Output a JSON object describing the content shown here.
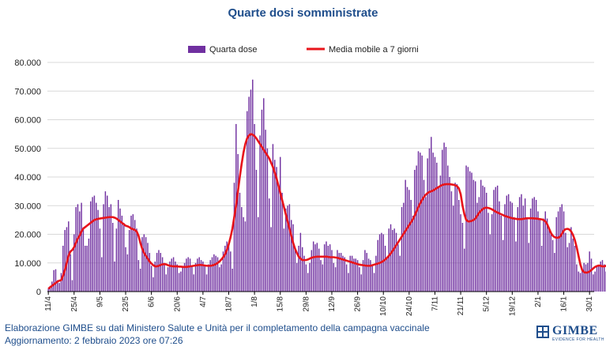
{
  "title": "Quarte dosi somministrate",
  "footer": {
    "line1": "Elaborazione GIMBE su dati Ministero Salute e Unità per il completamento della campagna vaccinale",
    "line2": "Aggiornamento: 2 febbraio 2023 ore 07:26"
  },
  "logo": {
    "name": "GIMBE",
    "tagline": "EVIDENCE FOR HEALTH"
  },
  "colors": {
    "bars": "#7030a0",
    "line": "#e8141b",
    "title": "#1f4e8c"
  },
  "chart_data": {
    "type": "bar",
    "title": "Quarte dosi somministrate",
    "ylim": [
      0,
      80000
    ],
    "y_ticks": [
      "0",
      "10.000",
      "20.000",
      "30.000",
      "40.000",
      "50.000",
      "60.000",
      "70.000",
      "80.000"
    ],
    "x_tick_labels": [
      "11/4",
      "25/4",
      "9/5",
      "23/5",
      "6/6",
      "20/6",
      "4/7",
      "18/7",
      "1/8",
      "15/8",
      "29/8",
      "12/9",
      "26/9",
      "10/10",
      "24/10",
      "7/11",
      "21/11",
      "5/12",
      "19/12",
      "2/1",
      "16/1",
      "30/1"
    ],
    "x_range": [
      "2022-04-11",
      "2023-02-01"
    ],
    "grid": "horizontal",
    "legend_position": "top",
    "series": [
      {
        "name": "Quarta dose",
        "kind": "bar",
        "start_date": "2022-04-11",
        "values": [
          1000,
          2000,
          3500,
          7500,
          7800,
          4000,
          3000,
          6500,
          16000,
          21500,
          22500,
          24500,
          13000,
          4000,
          20000,
          29500,
          30500,
          28000,
          31000,
          22500,
          16000,
          16000,
          18500,
          31500,
          33000,
          33500,
          31000,
          28500,
          22000,
          12000,
          30500,
          35000,
          33500,
          29500,
          30500,
          24000,
          10500,
          22000,
          32000,
          29000,
          26500,
          24000,
          15500,
          13000,
          21500,
          26500,
          27000,
          25000,
          22000,
          11000,
          8000,
          19000,
          20000,
          19000,
          17000,
          13500,
          9000,
          5000,
          10500,
          13500,
          14500,
          13500,
          12000,
          10000,
          6000,
          8500,
          10500,
          11500,
          12000,
          10500,
          9500,
          6500,
          7000,
          9000,
          10000,
          11500,
          12000,
          11500,
          9000,
          6000,
          10000,
          11500,
          12000,
          11000,
          10500,
          9000,
          6000,
          9500,
          11000,
          12000,
          13000,
          12500,
          12000,
          8500,
          9500,
          14000,
          16000,
          17500,
          17000,
          14000,
          8000,
          38000,
          58500,
          48000,
          34500,
          29500,
          26000,
          24500,
          63000,
          68000,
          70500,
          74000,
          58500,
          42500,
          26000,
          54500,
          63500,
          67500,
          56500,
          50000,
          32500,
          22500,
          51500,
          46000,
          43500,
          37000,
          47000,
          34500,
          22000,
          29000,
          30000,
          30500,
          25000,
          23500,
          15000,
          10000,
          16000,
          20500,
          15500,
          12500,
          9500,
          6500,
          10000,
          14500,
          17500,
          16500,
          17000,
          15000,
          11000,
          9500,
          16500,
          17500,
          16000,
          16500,
          14500,
          10000,
          8500,
          14500,
          13500,
          13500,
          12500,
          12000,
          9500,
          6500,
          12500,
          12500,
          11500,
          11500,
          11000,
          8500,
          6000,
          11000,
          14500,
          13500,
          11500,
          11000,
          9000,
          6500,
          12500,
          18000,
          20000,
          20500,
          20000,
          16000,
          11500,
          22000,
          23500,
          21500,
          22000,
          20500,
          16500,
          12500,
          29500,
          31000,
          39000,
          36500,
          35500,
          32000,
          26500,
          42500,
          44000,
          49000,
          48500,
          47500,
          39000,
          33000,
          46500,
          50000,
          54000,
          48500,
          47000,
          45000,
          36500,
          40500,
          49500,
          52000,
          50500,
          44000,
          40000,
          35000,
          30000,
          38000,
          37500,
          32000,
          27000,
          24000,
          15000,
          44000,
          43500,
          42000,
          41500,
          39000,
          38500,
          31000,
          33000,
          39000,
          37000,
          36500,
          34500,
          27500,
          20000,
          27000,
          35500,
          36500,
          37000,
          31500,
          26500,
          18000,
          30500,
          33500,
          34000,
          31500,
          31000,
          26000,
          17500,
          29500,
          33000,
          34000,
          30000,
          32500,
          25500,
          17000,
          29000,
          32500,
          33000,
          32000,
          28000,
          25000,
          16000,
          25500,
          28000,
          25500,
          22500,
          20000,
          18000,
          13500,
          26000,
          28000,
          29500,
          30500,
          28000,
          20500,
          15500,
          17000,
          22500,
          18500,
          16000,
          9500,
          7000,
          6500,
          8000,
          10000,
          9500,
          10000,
          14000,
          11500,
          6000,
          7000,
          9000,
          9000,
          10500,
          11000,
          9500,
          7000,
          12000,
          14000,
          14500,
          16000,
          12500,
          11000,
          9000,
          14000,
          16000,
          16500,
          17000,
          16500,
          14500,
          12500,
          11500,
          12000,
          12500,
          12000,
          11500,
          10500,
          8000,
          9000,
          10000,
          11000,
          10000,
          9500,
          8500,
          6000,
          9500,
          7000,
          6500,
          7000,
          6000,
          5500,
          5000
        ]
      },
      {
        "name": "Media mobile a 7 giorni",
        "kind": "line",
        "start_date": "2022-04-11",
        "values": [
          1000,
          1500,
          2000,
          2500,
          3000,
          3500,
          3800,
          4000,
          5500,
          7500,
          10000,
          12500,
          14000,
          14500,
          15500,
          17000,
          18500,
          19500,
          21000,
          22000,
          22500,
          23000,
          23500,
          24000,
          24500,
          25000,
          25200,
          25400,
          25500,
          25600,
          25700,
          25800,
          25900,
          26000,
          26000,
          26000,
          25800,
          25500,
          25000,
          24500,
          24000,
          23500,
          23000,
          22800,
          22500,
          22000,
          21800,
          21500,
          21000,
          19500,
          17000,
          15000,
          13500,
          12500,
          11500,
          10500,
          9800,
          9200,
          8800,
          8800,
          9000,
          9300,
          9500,
          9600,
          9500,
          9200,
          9000,
          8900,
          8800,
          8800,
          8800,
          8700,
          8700,
          8600,
          8600,
          8600,
          8700,
          8800,
          8900,
          9000,
          9100,
          9200,
          9300,
          9300,
          9200,
          9100,
          9000,
          9000,
          9000,
          9100,
          9300,
          9600,
          10000,
          10500,
          11200,
          12000,
          13000,
          14500,
          16500,
          19000,
          22000,
          26000,
          30000,
          35000,
          40000,
          44500,
          48500,
          51500,
          53500,
          54500,
          55000,
          54800,
          54300,
          53500,
          52500,
          51500,
          50500,
          49500,
          48500,
          47500,
          46500,
          45000,
          43500,
          41500,
          39500,
          37000,
          34500,
          32000,
          29500,
          27000,
          24500,
          22000,
          19500,
          17000,
          15000,
          13500,
          12200,
          11500,
          11000,
          11000,
          11000,
          11200,
          11500,
          11800,
          12000,
          12100,
          12200,
          12200,
          12200,
          12200,
          12200,
          12200,
          12100,
          12000,
          12000,
          12000,
          11900,
          11800,
          11600,
          11400,
          11200,
          11000,
          10800,
          10600,
          10400,
          10200,
          10000,
          9800,
          9600,
          9400,
          9300,
          9200,
          9100,
          9000,
          9000,
          9000,
          9200,
          9400,
          9600,
          9800,
          10000,
          10300,
          10700,
          11200,
          11800,
          12500,
          13300,
          14200,
          15200,
          16200,
          17200,
          18200,
          19200,
          20200,
          21200,
          22200,
          23200,
          24200,
          25200,
          26500,
          28000,
          29500,
          30800,
          32000,
          33000,
          33800,
          34400,
          34800,
          35000,
          35300,
          35700,
          36100,
          36500,
          36900,
          37200,
          37400,
          37500,
          37500,
          37500,
          37400,
          37300,
          37100,
          36800,
          36000,
          34000,
          30000,
          27000,
          25000,
          24500,
          24500,
          24700,
          25000,
          25500,
          26500,
          27500,
          28200,
          28800,
          29200,
          29300,
          29200,
          29000,
          28700,
          28300,
          27900,
          27600,
          27300,
          27000,
          26700,
          26400,
          26200,
          26000,
          25800,
          25600,
          25500,
          25400,
          25300,
          25300,
          25300,
          25400,
          25500,
          25600,
          25600,
          25600,
          25600,
          25500,
          25500,
          25400,
          25300,
          25200,
          25000,
          24500,
          23500,
          22000,
          20500,
          19500,
          19000,
          18800,
          18800,
          19200,
          20200,
          21300,
          21800,
          21900,
          21700,
          21000,
          19800,
          18000,
          15500,
          12500,
          9500,
          7500,
          6800,
          6600,
          6700,
          7000,
          7500,
          8100,
          8600,
          8900,
          9100,
          9000,
          8800,
          8800,
          9000,
          9300,
          9600,
          9900,
          10200,
          10500,
          11000,
          11600,
          12100,
          12400,
          12600,
          12500,
          12200,
          11700,
          11100,
          10500,
          10000,
          9600,
          9300,
          9000,
          8700,
          8400,
          8100,
          7800,
          7500,
          7200,
          6800,
          6400,
          6000,
          5700,
          5500,
          5300,
          5000,
          4800
        ]
      }
    ]
  }
}
